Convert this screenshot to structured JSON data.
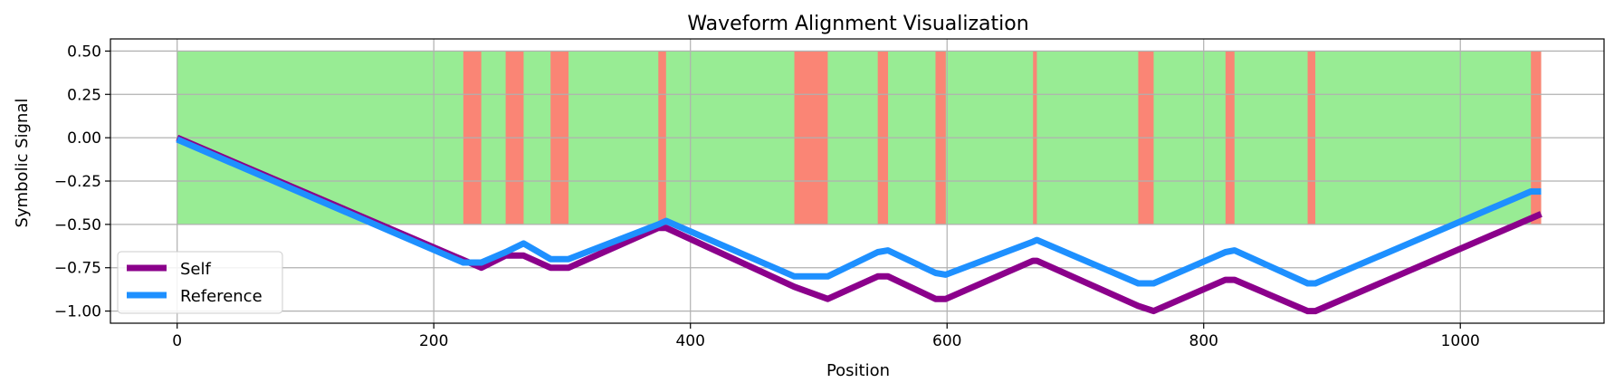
{
  "chart_data": {
    "type": "line",
    "title": "Waveform Alignment Visualization",
    "xlabel": "Position",
    "ylabel": "Symbolic Signal",
    "xlim": [
      -52,
      1112
    ],
    "ylim": [
      -1.07,
      0.57
    ],
    "xticks": [
      0,
      200,
      400,
      600,
      800,
      1000
    ],
    "xtick_labels": [
      "0",
      "200",
      "400",
      "600",
      "800",
      "1000"
    ],
    "yticks": [
      -1.0,
      -0.75,
      -0.5,
      -0.25,
      0.0,
      0.25,
      0.5
    ],
    "ytick_labels": [
      "−1.00",
      "−0.75",
      "−0.50",
      "−0.25",
      "0.00",
      "0.25",
      "0.50"
    ],
    "grid": true,
    "legend_position": "lower-left",
    "band": {
      "y_range": [
        -0.5,
        0.5
      ],
      "match_color": "#98EC94",
      "mismatch_color": "#FA8575",
      "full_range": [
        0,
        1063
      ],
      "mismatch_ranges": [
        [
          223,
          237
        ],
        [
          256,
          270
        ],
        [
          291,
          305
        ],
        [
          375,
          381
        ],
        [
          481,
          507
        ],
        [
          546,
          554
        ],
        [
          591,
          599
        ],
        [
          667,
          670
        ],
        [
          749,
          761
        ],
        [
          817,
          824
        ],
        [
          881,
          887
        ],
        [
          1055,
          1063
        ]
      ]
    },
    "series": [
      {
        "name": "Self",
        "color": "#8B008B",
        "x": [
          0,
          237,
          256,
          270,
          291,
          305,
          375,
          381,
          481,
          507,
          546,
          554,
          591,
          599,
          667,
          670,
          749,
          761,
          817,
          824,
          881,
          887,
          1063
        ],
        "y": [
          0.0,
          -0.75,
          -0.68,
          -0.68,
          -0.75,
          -0.75,
          -0.52,
          -0.52,
          -0.86,
          -0.93,
          -0.8,
          -0.8,
          -0.93,
          -0.93,
          -0.71,
          -0.71,
          -0.97,
          -1.0,
          -0.82,
          -0.82,
          -1.0,
          -1.0,
          -0.44
        ]
      },
      {
        "name": "Reference",
        "color": "#1E90FF",
        "x": [
          0,
          223,
          237,
          256,
          270,
          291,
          305,
          375,
          381,
          481,
          507,
          546,
          554,
          591,
          599,
          667,
          670,
          749,
          761,
          817,
          824,
          881,
          887,
          1055,
          1063
        ],
        "y": [
          -0.01,
          -0.72,
          -0.72,
          -0.66,
          -0.61,
          -0.7,
          -0.7,
          -0.5,
          -0.48,
          -0.8,
          -0.8,
          -0.66,
          -0.65,
          -0.78,
          -0.79,
          -0.6,
          -0.59,
          -0.84,
          -0.84,
          -0.66,
          -0.65,
          -0.84,
          -0.84,
          -0.31,
          -0.31
        ]
      }
    ]
  }
}
